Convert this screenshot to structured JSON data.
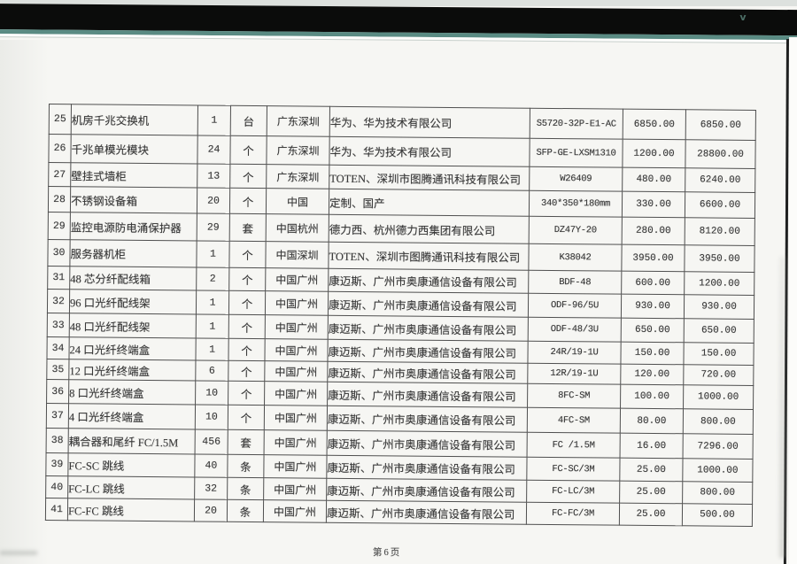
{
  "colors": {
    "paper": "#f6f6f3",
    "scan-band": "#0b0c0b",
    "scan-teal": "#5a8b83",
    "table-line": "#4f4f4f",
    "ink": "#383838"
  },
  "footer": {
    "page_label": "第6页"
  },
  "table": {
    "rows": [
      {
        "no": "25",
        "name": "机房千兆交换机",
        "qty": "1",
        "unit": "台",
        "origin": "广东深圳",
        "manufacturer": "华为、华为技术有限公司",
        "model": "S5720-32P-E1-AC",
        "unit_price": "6850.00",
        "total": "6850.00"
      },
      {
        "no": "26",
        "name": "千兆单模光模块",
        "qty": "24",
        "unit": "个",
        "origin": "广东深圳",
        "manufacturer": "华为、华为技术有限公司",
        "model": "SFP-GE-LXSM1310",
        "unit_price": "1200.00",
        "total": "28800.00"
      },
      {
        "no": "27",
        "name": "壁挂式墙柜",
        "qty": "13",
        "unit": "个",
        "origin": "广东深圳",
        "manufacturer": "TOTEN、深圳市图腾通讯科技有限公司",
        "model": "W26409",
        "unit_price": "480.00",
        "total": "6240.00"
      },
      {
        "no": "28",
        "name": "不锈钢设备箱",
        "qty": "20",
        "unit": "个",
        "origin": "中国",
        "manufacturer": "定制、国产",
        "model": "340*350*180mm",
        "unit_price": "330.00",
        "total": "6600.00"
      },
      {
        "no": "29",
        "name": "监控电源防电涌保护器",
        "qty": "29",
        "unit": "套",
        "origin": "中国杭州",
        "manufacturer": "德力西、杭州德力西集团有限公司",
        "model": "DZ47Y-20",
        "unit_price": "280.00",
        "total": "8120.00"
      },
      {
        "no": "30",
        "name": "服务器机柜",
        "qty": "1",
        "unit": "个",
        "origin": "中国深圳",
        "manufacturer": "TOTEN、深圳市图腾通讯科技有限公司",
        "model": "K38042",
        "unit_price": "3950.00",
        "total": "3950.00"
      },
      {
        "no": "31",
        "name": "48 芯分纤配线箱",
        "qty": "2",
        "unit": "个",
        "origin": "中国广州",
        "manufacturer": "康迈斯、广州市奥康通信设备有限公司",
        "model": "BDF-48",
        "unit_price": "600.00",
        "total": "1200.00"
      },
      {
        "no": "32",
        "name": "96 口光纤配线架",
        "qty": "1",
        "unit": "个",
        "origin": "中国广州",
        "manufacturer": "康迈斯、广州市奥康通信设备有限公司",
        "model": "ODF-96/5U",
        "unit_price": "930.00",
        "total": "930.00"
      },
      {
        "no": "33",
        "name": "48 口光纤配线架",
        "qty": "1",
        "unit": "个",
        "origin": "中国广州",
        "manufacturer": "康迈斯、广州市奥康通信设备有限公司",
        "model": "ODF-48/3U",
        "unit_price": "650.00",
        "total": "650.00"
      },
      {
        "no": "34",
        "name": "24 口光纤终端盒",
        "qty": "1",
        "unit": "个",
        "origin": "中国广州",
        "manufacturer": "康迈斯、广州市奥康通信设备有限公司",
        "model": "24R/19-1U",
        "unit_price": "150.00",
        "total": "150.00"
      },
      {
        "no": "35",
        "name": "12 口光纤终端盒",
        "qty": "6",
        "unit": "个",
        "origin": "中国广州",
        "manufacturer": "康迈斯、广州市奥康通信设备有限公司",
        "model": "12R/19-1U",
        "unit_price": "120.00",
        "total": "720.00"
      },
      {
        "no": "36",
        "name": "8 口光纤终端盒",
        "qty": "10",
        "unit": "个",
        "origin": "中国广州",
        "manufacturer": "康迈斯、广州市奥康通信设备有限公司",
        "model": "8FC-SM",
        "unit_price": "100.00",
        "total": "1000.00"
      },
      {
        "no": "37",
        "name": "4 口光纤终端盒",
        "qty": "10",
        "unit": "个",
        "origin": "中国广州",
        "manufacturer": "康迈斯、广州市奥康通信设备有限公司",
        "model": "4FC-SM",
        "unit_price": "80.00",
        "total": "800.00"
      },
      {
        "no": "38",
        "name": "耦合器和尾纤 FC/1.5M",
        "qty": "456",
        "unit": "套",
        "origin": "中国广州",
        "manufacturer": "康迈斯、广州市奥康通信设备有限公司",
        "model": "FC /1.5M",
        "unit_price": "16.00",
        "total": "7296.00"
      },
      {
        "no": "39",
        "name": "FC-SC 跳线",
        "qty": "40",
        "unit": "条",
        "origin": "中国广州",
        "manufacturer": "康迈斯、广州市奥康通信设备有限公司",
        "model": "FC-SC/3M",
        "unit_price": "25.00",
        "total": "1000.00"
      },
      {
        "no": "40",
        "name": "FC-LC 跳线",
        "qty": "32",
        "unit": "条",
        "origin": "中国广州",
        "manufacturer": "康迈斯、广州市奥康通信设备有限公司",
        "model": "FC-LC/3M",
        "unit_price": "25.00",
        "total": "800.00"
      },
      {
        "no": "41",
        "name": "FC-FC 跳线",
        "qty": "20",
        "unit": "条",
        "origin": "中国广州",
        "manufacturer": "康迈斯、广州市奥康通信设备有限公司",
        "model": "FC-FC/3M",
        "unit_price": "25.00",
        "total": "500.00"
      }
    ]
  },
  "artifacts": {
    "band_mark": "v"
  }
}
